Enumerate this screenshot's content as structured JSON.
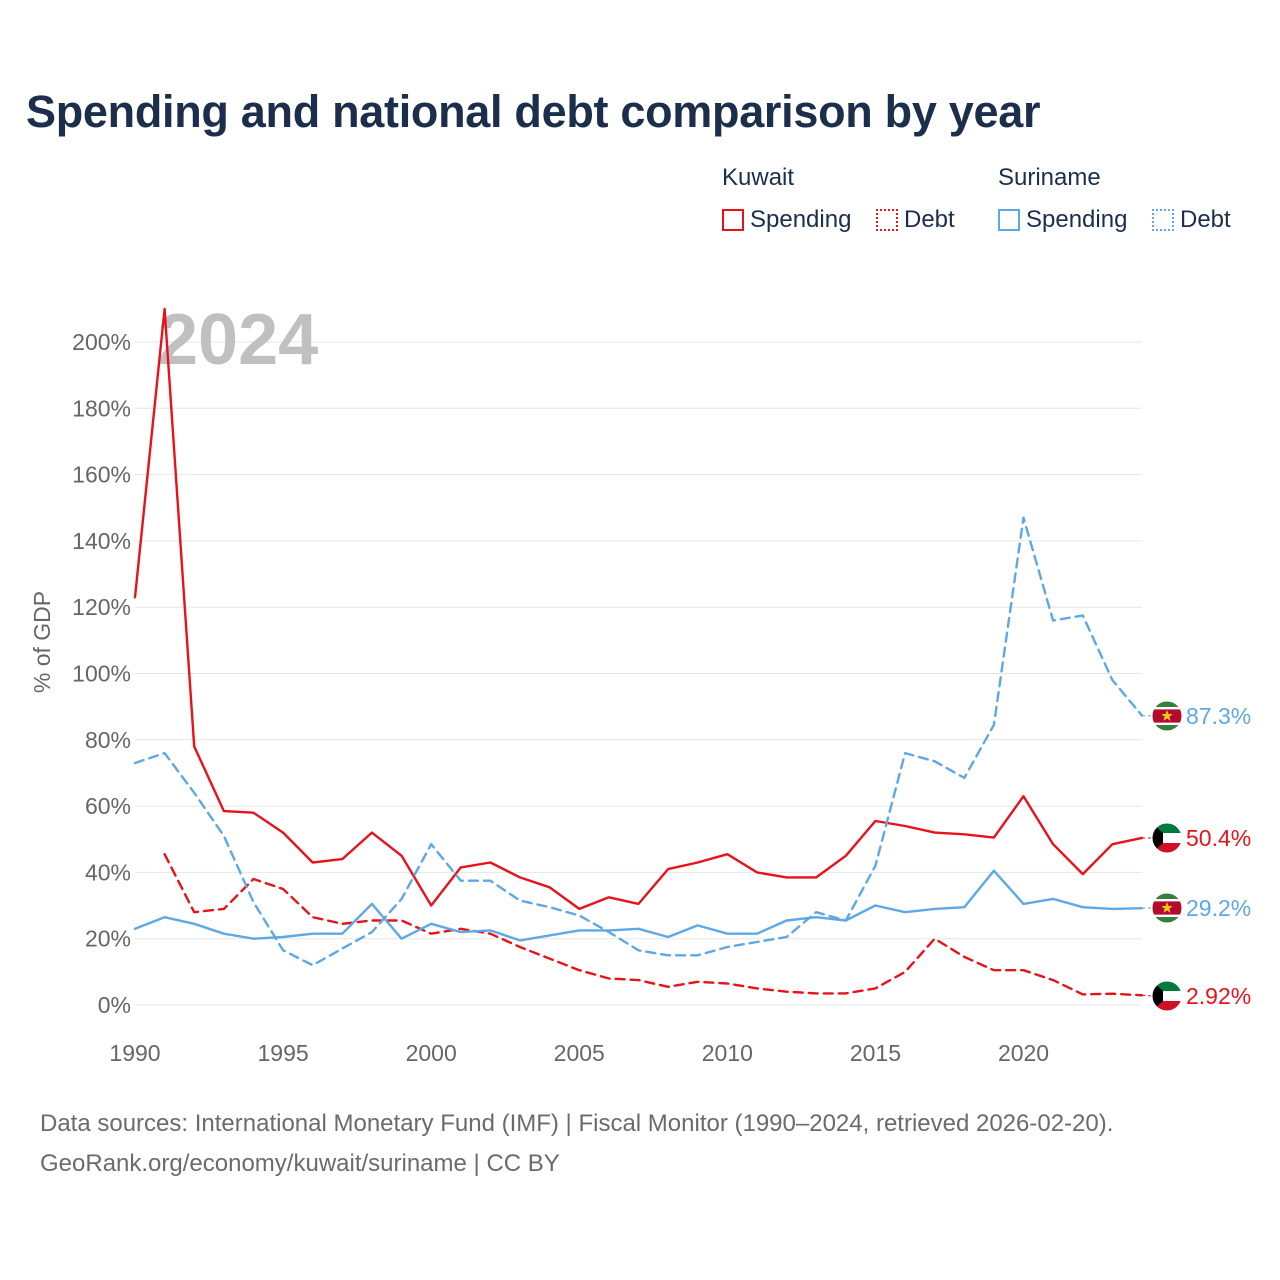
{
  "title": "Spending and national debt comparison by year",
  "legend": {
    "kuwait_label": "Kuwait",
    "suriname_label": "Suriname",
    "spending_label": "Spending",
    "debt_label": "Debt"
  },
  "colors": {
    "kuwait": "#e8121b",
    "suriname": "#5ea8e6",
    "grid": "#e6e6e6",
    "axis_text": "#666666",
    "year_watermark": "#c0c0c0"
  },
  "footer": {
    "line1": "Data sources: International Monetary Fund (IMF) | Fiscal Monitor (1990–2024, retrieved 2026-02-20).",
    "line2": "GeoRank.org/economy/kuwait/suriname | CC BY"
  },
  "chart_data": {
    "type": "line",
    "title": "Spending and national debt comparison by year",
    "xlabel": "",
    "ylabel": "% of GDP",
    "xlim": [
      1990,
      2024
    ],
    "ylim": [
      0,
      200
    ],
    "x_ticks": [
      "1990",
      "1995",
      "2000",
      "2005",
      "2010",
      "2015",
      "2020"
    ],
    "y_ticks": [
      "0%",
      "20%",
      "40%",
      "60%",
      "80%",
      "100%",
      "120%",
      "140%",
      "160%",
      "180%",
      "200%"
    ],
    "year_watermark": "2024",
    "grid": true,
    "series": [
      {
        "name": "Kuwait Spending",
        "country": "Kuwait",
        "flag": "kuwait",
        "style": "solid",
        "end_label": "50.4%",
        "x": [
          1990,
          1991,
          1992,
          1993,
          1994,
          1995,
          1996,
          1997,
          1998,
          1999,
          2000,
          2001,
          2002,
          2003,
          2004,
          2005,
          2006,
          2007,
          2008,
          2009,
          2010,
          2011,
          2012,
          2013,
          2014,
          2015,
          2016,
          2017,
          2018,
          2019,
          2020,
          2021,
          2022,
          2023,
          2024
        ],
        "values": [
          123,
          210,
          78,
          58.5,
          58,
          52,
          43,
          44,
          52,
          45,
          30,
          41.5,
          43,
          38.5,
          35.5,
          29,
          32.5,
          30.5,
          41,
          43,
          45.5,
          40,
          38.5,
          38.5,
          45,
          55.5,
          54,
          52,
          51.5,
          50.5,
          63,
          48.5,
          39.5,
          48.5,
          50.4
        ]
      },
      {
        "name": "Kuwait Debt",
        "country": "Kuwait",
        "flag": "kuwait",
        "style": "dashed",
        "end_label": "2.92%",
        "x": [
          1991,
          1992,
          1993,
          1994,
          1995,
          1996,
          1997,
          1998,
          1999,
          2000,
          2001,
          2002,
          2003,
          2004,
          2005,
          2006,
          2007,
          2008,
          2009,
          2010,
          2011,
          2012,
          2013,
          2014,
          2015,
          2016,
          2017,
          2018,
          2019,
          2020,
          2021,
          2022,
          2023,
          2024
        ],
        "values": [
          45.5,
          28,
          29,
          38,
          35,
          26.5,
          24.5,
          25.5,
          25.5,
          21.5,
          23,
          21.5,
          17.5,
          14,
          10.5,
          8,
          7.5,
          5.5,
          7,
          6.5,
          5,
          4,
          3.5,
          3.5,
          5,
          10,
          20,
          14.5,
          10.5,
          10.5,
          7.5,
          3.2,
          3.4,
          2.92
        ]
      },
      {
        "name": "Suriname Spending",
        "country": "Suriname",
        "flag": "suriname",
        "style": "solid",
        "end_label": "29.2%",
        "x": [
          1990,
          1991,
          1992,
          1993,
          1994,
          1995,
          1996,
          1997,
          1998,
          1999,
          2000,
          2001,
          2002,
          2003,
          2004,
          2005,
          2006,
          2007,
          2008,
          2009,
          2010,
          2011,
          2012,
          2013,
          2014,
          2015,
          2016,
          2017,
          2018,
          2019,
          2020,
          2021,
          2022,
          2023,
          2024
        ],
        "values": [
          23,
          26.5,
          24.5,
          21.5,
          20,
          20.5,
          21.5,
          21.5,
          30.5,
          20,
          24.5,
          22,
          22.5,
          19.5,
          21,
          22.5,
          22.5,
          23,
          20.5,
          24,
          21.5,
          21.5,
          25.5,
          26.5,
          25.5,
          30,
          28,
          29,
          29.5,
          40.5,
          30.5,
          32,
          29.5,
          29,
          29.2
        ]
      },
      {
        "name": "Suriname Debt",
        "country": "Suriname",
        "flag": "suriname",
        "style": "dashed",
        "end_label": "87.3%",
        "x": [
          1990,
          1991,
          1992,
          1993,
          1994,
          1995,
          1996,
          1997,
          1998,
          1999,
          2000,
          2001,
          2002,
          2003,
          2004,
          2005,
          2006,
          2007,
          2008,
          2009,
          2010,
          2011,
          2012,
          2013,
          2014,
          2015,
          2016,
          2017,
          2018,
          2019,
          2020,
          2021,
          2022,
          2023,
          2024
        ],
        "values": [
          73,
          76,
          64,
          51,
          31,
          16.5,
          12,
          17,
          22,
          32,
          48.5,
          37.5,
          37.5,
          31.5,
          29.5,
          27,
          22,
          16.5,
          15,
          15,
          17.5,
          19,
          20.5,
          28,
          25.5,
          42,
          76,
          73.5,
          68.5,
          84.5,
          147,
          116,
          117.5,
          98,
          87.3
        ]
      }
    ]
  }
}
